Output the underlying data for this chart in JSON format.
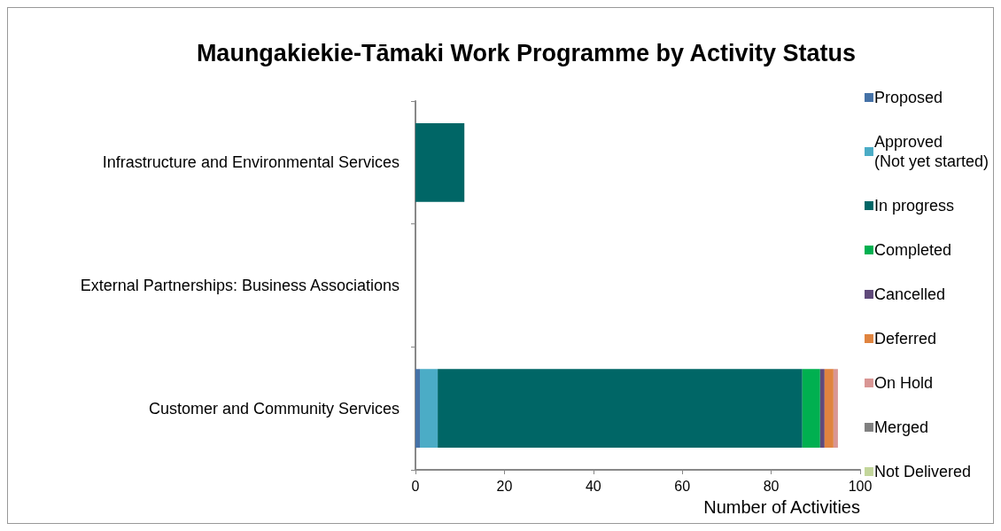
{
  "chart_data": {
    "type": "bar",
    "orientation": "horizontal",
    "stacked": true,
    "title": "Maungakiekie-Tāmaki Work Programme by Activity Status",
    "xlabel": "Number of Activities",
    "categories": [
      "Infrastructure and Environmental Services",
      "External Partnerships: Business Associations",
      "Customer and Community Services"
    ],
    "series": [
      {
        "name": "Proposed",
        "color": "#4572a7",
        "values": [
          0,
          0,
          1
        ]
      },
      {
        "name": "Approved\n(Not yet started)",
        "color": "#4bacc6",
        "values": [
          0,
          0,
          4
        ]
      },
      {
        "name": "In progress",
        "color": "#006666",
        "values": [
          11,
          0,
          82
        ]
      },
      {
        "name": "Completed",
        "color": "#00b050",
        "values": [
          0,
          0,
          4
        ]
      },
      {
        "name": "Cancelled",
        "color": "#604a7b",
        "values": [
          0,
          0,
          1
        ]
      },
      {
        "name": "Deferred",
        "color": "#e0843f",
        "values": [
          0,
          0,
          2
        ]
      },
      {
        "name": "On Hold",
        "color": "#d99694",
        "values": [
          0,
          0,
          1
        ]
      },
      {
        "name": "Merged",
        "color": "#808080",
        "values": [
          0,
          0,
          0
        ]
      },
      {
        "name": "Not Delivered",
        "color": "#c3d69b",
        "values": [
          0,
          0,
          0
        ]
      }
    ],
    "xlim": [
      0,
      100
    ],
    "xticks": [
      0,
      20,
      40,
      60,
      80,
      100
    ],
    "grid": false,
    "legend": "right"
  }
}
